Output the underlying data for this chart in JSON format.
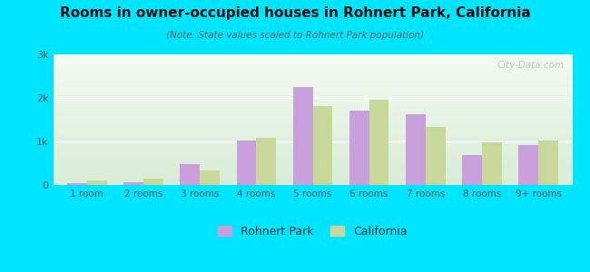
{
  "title": "Rooms in owner-occupied houses in Rohnert Park, California",
  "subtitle": "(Note: State values scaled to Rohnert Park population)",
  "categories": [
    "1 room",
    "2 rooms",
    "3 rooms",
    "4 rooms",
    "5 rooms",
    "6 rooms",
    "7 rooms",
    "8 rooms",
    "9+ rooms"
  ],
  "rohnert_park": [
    50,
    70,
    480,
    1020,
    2260,
    1700,
    1620,
    680,
    920
  ],
  "california": [
    100,
    150,
    330,
    1080,
    1810,
    1960,
    1330,
    970,
    1020
  ],
  "rohnert_color": "#c9a0dc",
  "california_color": "#c8d89a",
  "ylim": [
    0,
    3000
  ],
  "yticks": [
    0,
    1000,
    2000,
    3000
  ],
  "ytick_labels": [
    "0",
    "1k",
    "2k",
    "3k"
  ],
  "background_color": "#00e5ff",
  "watermark": "City-Data.com",
  "legend_labels": [
    "Rohnert Park",
    "California"
  ]
}
